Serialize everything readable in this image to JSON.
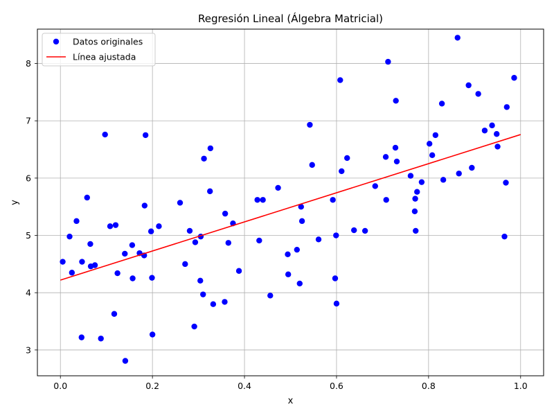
{
  "chart_data": {
    "type": "scatter",
    "title": "Regresión Lineal (Álgebra Matricial)",
    "xlabel": "x",
    "ylabel": "y",
    "xlim": [
      -0.05,
      1.05
    ],
    "ylim": [
      2.55,
      8.6
    ],
    "x_ticks": [
      0.0,
      0.2,
      0.4,
      0.6,
      0.8,
      1.0
    ],
    "x_tick_labels": [
      "0.0",
      "0.2",
      "0.4",
      "0.6",
      "0.8",
      "1.0"
    ],
    "y_ticks": [
      3,
      4,
      5,
      6,
      7,
      8
    ],
    "y_tick_labels": [
      "3",
      "4",
      "5",
      "6",
      "7",
      "8"
    ],
    "grid": true,
    "legend_position": "top-left",
    "series": [
      {
        "name": "Datos originales",
        "kind": "scatter",
        "color": "#0000ff",
        "points": [
          [
            0.005,
            4.54
          ],
          [
            0.02,
            4.98
          ],
          [
            0.025,
            4.35
          ],
          [
            0.035,
            5.25
          ],
          [
            0.046,
            3.22
          ],
          [
            0.047,
            4.54
          ],
          [
            0.058,
            5.66
          ],
          [
            0.065,
            4.85
          ],
          [
            0.066,
            4.46
          ],
          [
            0.075,
            4.48
          ],
          [
            0.088,
            3.2
          ],
          [
            0.097,
            6.76
          ],
          [
            0.108,
            5.16
          ],
          [
            0.117,
            3.63
          ],
          [
            0.12,
            5.18
          ],
          [
            0.124,
            4.34
          ],
          [
            0.14,
            4.68
          ],
          [
            0.141,
            2.81
          ],
          [
            0.156,
            4.83
          ],
          [
            0.157,
            4.25
          ],
          [
            0.172,
            4.69
          ],
          [
            0.182,
            4.65
          ],
          [
            0.183,
            5.52
          ],
          [
            0.185,
            6.75
          ],
          [
            0.197,
            5.07
          ],
          [
            0.199,
            4.26
          ],
          [
            0.2,
            3.27
          ],
          [
            0.214,
            5.16
          ],
          [
            0.26,
            5.57
          ],
          [
            0.271,
            4.5
          ],
          [
            0.281,
            5.08
          ],
          [
            0.291,
            3.41
          ],
          [
            0.293,
            4.88
          ],
          [
            0.304,
            4.21
          ],
          [
            0.305,
            4.98
          ],
          [
            0.31,
            3.97
          ],
          [
            0.312,
            6.34
          ],
          [
            0.325,
            5.77
          ],
          [
            0.326,
            6.52
          ],
          [
            0.332,
            3.8
          ],
          [
            0.357,
            3.84
          ],
          [
            0.358,
            5.38
          ],
          [
            0.365,
            4.87
          ],
          [
            0.375,
            5.21
          ],
          [
            0.388,
            4.38
          ],
          [
            0.428,
            5.62
          ],
          [
            0.432,
            4.91
          ],
          [
            0.44,
            5.62
          ],
          [
            0.456,
            3.95
          ],
          [
            0.473,
            5.83
          ],
          [
            0.494,
            4.67
          ],
          [
            0.495,
            4.32
          ],
          [
            0.514,
            4.75
          ],
          [
            0.52,
            4.16
          ],
          [
            0.523,
            5.5
          ],
          [
            0.525,
            5.25
          ],
          [
            0.542,
            6.93
          ],
          [
            0.547,
            6.23
          ],
          [
            0.561,
            4.93
          ],
          [
            0.592,
            5.62
          ],
          [
            0.597,
            4.25
          ],
          [
            0.599,
            5.0
          ],
          [
            0.6,
            3.81
          ],
          [
            0.608,
            7.71
          ],
          [
            0.611,
            6.12
          ],
          [
            0.623,
            6.35
          ],
          [
            0.638,
            5.09
          ],
          [
            0.662,
            5.08
          ],
          [
            0.684,
            5.86
          ],
          [
            0.707,
            6.37
          ],
          [
            0.708,
            5.62
          ],
          [
            0.712,
            8.03
          ],
          [
            0.728,
            6.53
          ],
          [
            0.729,
            7.35
          ],
          [
            0.731,
            6.29
          ],
          [
            0.761,
            6.04
          ],
          [
            0.77,
            5.42
          ],
          [
            0.771,
            5.64
          ],
          [
            0.772,
            5.08
          ],
          [
            0.775,
            5.76
          ],
          [
            0.785,
            5.93
          ],
          [
            0.802,
            6.6
          ],
          [
            0.808,
            6.4
          ],
          [
            0.815,
            6.75
          ],
          [
            0.829,
            7.3
          ],
          [
            0.832,
            5.97
          ],
          [
            0.863,
            8.45
          ],
          [
            0.866,
            6.08
          ],
          [
            0.887,
            7.62
          ],
          [
            0.894,
            6.18
          ],
          [
            0.908,
            7.47
          ],
          [
            0.922,
            6.83
          ],
          [
            0.938,
            6.92
          ],
          [
            0.948,
            6.77
          ],
          [
            0.95,
            6.55
          ],
          [
            0.965,
            4.98
          ],
          [
            0.968,
            5.92
          ],
          [
            0.97,
            7.24
          ],
          [
            0.986,
            7.75
          ]
        ]
      },
      {
        "name": "Línea ajustada",
        "kind": "line",
        "color": "#ff0000",
        "points": [
          [
            0.0,
            4.22
          ],
          [
            1.0,
            6.76
          ]
        ]
      }
    ]
  }
}
